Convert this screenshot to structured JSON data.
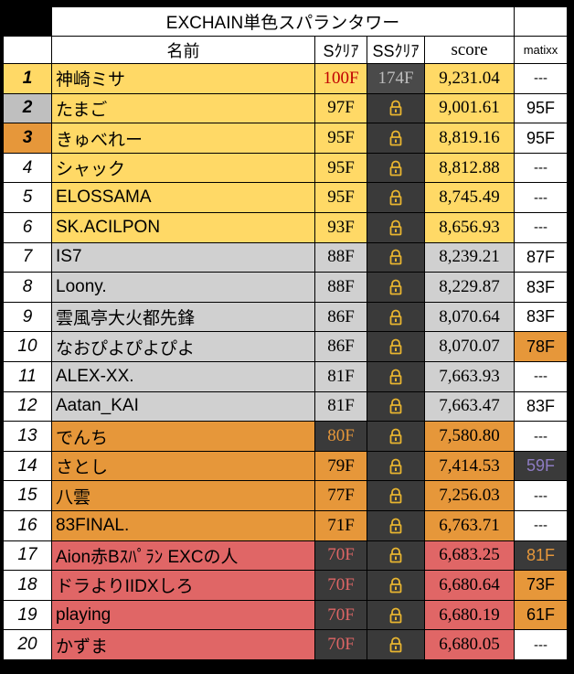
{
  "title": "EXCHAIN単色スパランタワー",
  "headers": {
    "name": "名前",
    "s": "Sｸﾘｱ",
    "ss": "SSｸﾘｱ",
    "score": "score",
    "matixx": "matixx"
  },
  "colors": {
    "yellow": "#ffd966",
    "gray": "#d0d0d0",
    "orange": "#e6973a",
    "red": "#e06666",
    "dark": "#3a3a3a",
    "silver_rank": "#bfbfbf",
    "bronze_rank": "#e6973a"
  },
  "rows": [
    {
      "rank": "1",
      "name": "神崎ミサ",
      "s": "100F",
      "ss": "174F",
      "score": "9,231.04",
      "matixx": "---"
    },
    {
      "rank": "2",
      "name": "たまご",
      "s": "97F",
      "ss": "lock-icon",
      "score": "9,001.61",
      "matixx": "95F"
    },
    {
      "rank": "3",
      "name": "きゅべれー",
      "s": "95F",
      "ss": "lock-icon",
      "score": "8,819.16",
      "matixx": "95F"
    },
    {
      "rank": "4",
      "name": "シャック",
      "s": "95F",
      "ss": "lock-icon",
      "score": "8,812.88",
      "matixx": "---"
    },
    {
      "rank": "5",
      "name": "ELOSSAMA",
      "s": "95F",
      "ss": "lock-icon",
      "score": "8,745.49",
      "matixx": "---"
    },
    {
      "rank": "6",
      "name": "SK.ACILPON",
      "s": "93F",
      "ss": "lock-icon",
      "score": "8,656.93",
      "matixx": "---"
    },
    {
      "rank": "7",
      "name": "IS7",
      "s": "88F",
      "ss": "lock-icon",
      "score": "8,239.21",
      "matixx": "87F"
    },
    {
      "rank": "8",
      "name": "Loony.",
      "s": "88F",
      "ss": "lock-icon",
      "score": "8,229.87",
      "matixx": "83F"
    },
    {
      "rank": "9",
      "name": "雲風亭大火都先鋒",
      "s": "86F",
      "ss": "lock-icon",
      "score": "8,070.64",
      "matixx": "83F"
    },
    {
      "rank": "10",
      "name": "なおぴよぴよぴよ",
      "s": "86F",
      "ss": "lock-icon",
      "score": "8,070.07",
      "matixx": "78F"
    },
    {
      "rank": "11",
      "name": "ALEX-XX.",
      "s": "81F",
      "ss": "lock-icon",
      "score": "7,663.93",
      "matixx": "---"
    },
    {
      "rank": "12",
      "name": "Aatan_KAI",
      "s": "81F",
      "ss": "lock-icon",
      "score": "7,663.47",
      "matixx": "83F"
    },
    {
      "rank": "13",
      "name": "でんち",
      "s": "80F",
      "ss": "lock-icon",
      "score": "7,580.80",
      "matixx": "---"
    },
    {
      "rank": "14",
      "name": "さとし",
      "s": "79F",
      "ss": "lock-icon",
      "score": "7,414.53",
      "matixx": "59F"
    },
    {
      "rank": "15",
      "name": "八雲",
      "s": "77F",
      "ss": "lock-icon",
      "score": "7,256.03",
      "matixx": "---"
    },
    {
      "rank": "16",
      "name": "83FINAL.",
      "s": "71F",
      "ss": "lock-icon",
      "score": "6,763.71",
      "matixx": "---"
    },
    {
      "rank": "17",
      "name": "Aion赤Bｽﾊﾟﾗﾝ EXCの人",
      "s": "70F",
      "ss": "lock-icon",
      "score": "6,683.25",
      "matixx": "81F"
    },
    {
      "rank": "18",
      "name": "ドラよりIIDXしろ",
      "s": "70F",
      "ss": "lock-icon",
      "score": "6,680.64",
      "matixx": "73F"
    },
    {
      "rank": "19",
      "name": "playing",
      "s": "70F",
      "ss": "lock-icon",
      "score": "6,680.19",
      "matixx": "61F"
    },
    {
      "rank": "20",
      "name": "かずま",
      "s": "70F",
      "ss": "lock-icon",
      "score": "6,680.05",
      "matixx": "---"
    }
  ]
}
